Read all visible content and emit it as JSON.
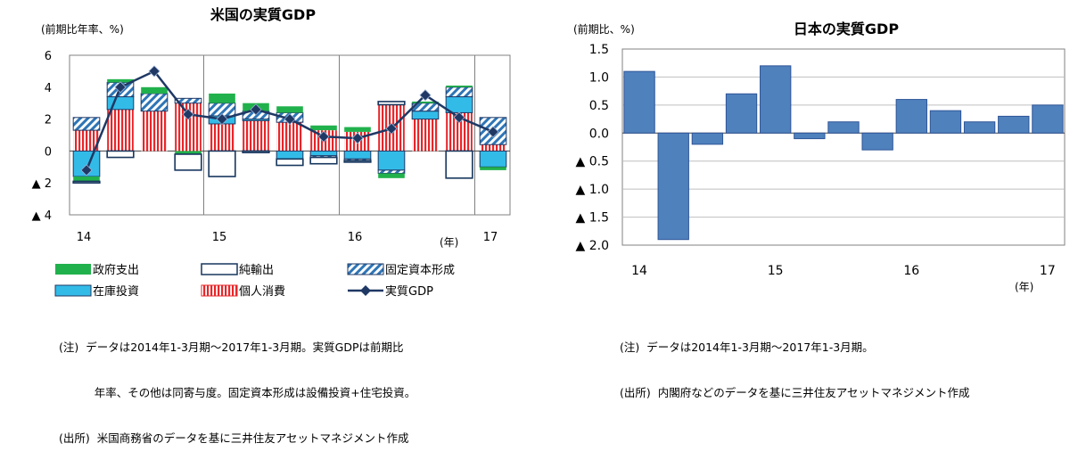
{
  "chart_data": [
    {
      "type": "bar",
      "title": "米国の実質GDP",
      "unit_label": "(前期比年率、%)",
      "year_label": "(年)",
      "ylim": [
        -4,
        6
      ],
      "yticks": [
        6,
        4,
        2,
        0,
        -2,
        -4
      ],
      "ytick_labels": [
        "6",
        "4",
        "2",
        "0",
        "▲ 2",
        "▲ 4"
      ],
      "year_ticks": [
        {
          "label": "14",
          "index": 0
        },
        {
          "label": "15",
          "index": 4
        },
        {
          "label": "16",
          "index": 8
        },
        {
          "label": "17",
          "index": 12
        }
      ],
      "categories": [
        "2014Q1",
        "2014Q2",
        "2014Q3",
        "2014Q4",
        "2015Q1",
        "2015Q2",
        "2015Q3",
        "2015Q4",
        "2016Q1",
        "2016Q2",
        "2016Q3",
        "2016Q4",
        "2017Q1"
      ],
      "series": [
        {
          "name": "政府支出",
          "kind": "stack",
          "color": "#21b14c",
          "values": [
            -0.3,
            0.2,
            0.4,
            -0.2,
            0.6,
            0.5,
            0.4,
            0.3,
            0.3,
            -0.3,
            0.1,
            0.1,
            -0.2
          ]
        },
        {
          "name": "純輸出",
          "kind": "stack",
          "color": "#17375e",
          "values": [
            -0.1,
            -0.4,
            0.0,
            -1.0,
            -1.6,
            -0.1,
            -0.4,
            -0.4,
            -0.1,
            0.2,
            0.0,
            -1.7,
            0.0
          ]
        },
        {
          "name": "固定資本形成",
          "kind": "stack",
          "color": "#2e75b6",
          "values": [
            0.8,
            0.9,
            1.1,
            0.3,
            0.8,
            0.5,
            0.6,
            -0.1,
            -0.1,
            -0.2,
            0.5,
            0.6,
            1.7
          ]
        },
        {
          "name": "在庫投資",
          "kind": "stack",
          "color": "#33bbe8",
          "values": [
            -1.6,
            0.8,
            0.0,
            0.0,
            0.5,
            0.1,
            -0.5,
            -0.3,
            -0.5,
            -1.2,
            0.5,
            1.0,
            -1.0
          ]
        },
        {
          "name": "個人消費",
          "kind": "stack",
          "color": "#e8262a",
          "values": [
            1.3,
            2.6,
            2.5,
            3.0,
            1.7,
            1.9,
            1.8,
            1.3,
            1.2,
            2.9,
            2.0,
            2.4,
            0.4
          ]
        },
        {
          "name": "実質GDP",
          "kind": "line",
          "color": "#1f3864",
          "values": [
            -1.2,
            4.0,
            5.0,
            2.3,
            2.0,
            2.6,
            2.0,
            0.9,
            0.8,
            1.4,
            3.5,
            2.1,
            1.2
          ]
        }
      ]
    },
    {
      "type": "bar",
      "title": "日本の実質GDP",
      "unit_label": "(前期比、%)",
      "year_label": "(年)",
      "ylim": [
        -2.0,
        1.5
      ],
      "yticks": [
        1.5,
        1.0,
        0.5,
        0.0,
        -0.5,
        -1.0,
        -1.5,
        -2.0
      ],
      "ytick_labels": [
        "1.5",
        "1.0",
        "0.5",
        "0.0",
        "▲ 0.5",
        "▲ 1.0",
        "▲ 1.5",
        "▲ 2.0"
      ],
      "year_ticks": [
        {
          "label": "14",
          "index": 0
        },
        {
          "label": "15",
          "index": 4
        },
        {
          "label": "16",
          "index": 8
        },
        {
          "label": "17",
          "index": 12
        }
      ],
      "categories": [
        "2014Q1",
        "2014Q2",
        "2014Q3",
        "2014Q4",
        "2015Q1",
        "2015Q2",
        "2015Q3",
        "2015Q4",
        "2016Q1",
        "2016Q2",
        "2016Q3",
        "2016Q4",
        "2017Q1"
      ],
      "series": [
        {
          "name": "実質GDP",
          "color": "#4f81bd",
          "values": [
            1.1,
            -1.9,
            -0.2,
            0.7,
            1.2,
            -0.1,
            0.2,
            -0.3,
            0.6,
            0.4,
            0.2,
            0.3,
            0.5
          ]
        }
      ]
    }
  ],
  "notes": {
    "us": [
      "(注)  データは2014年1-3月期～2017年1-3月期。実質GDPは前期比",
      "          年率、その他は同寄与度。固定資本形成は設備投資+住宅投資。",
      "(出所)  米国商務省のデータを基に三井住友アセットマネジメント作成"
    ],
    "jp": [
      "(注)  データは2014年1-3月期～2017年1-3月期。",
      "(出所)  内閣府などのデータを基に三井住友アセットマネジメント作成"
    ]
  }
}
